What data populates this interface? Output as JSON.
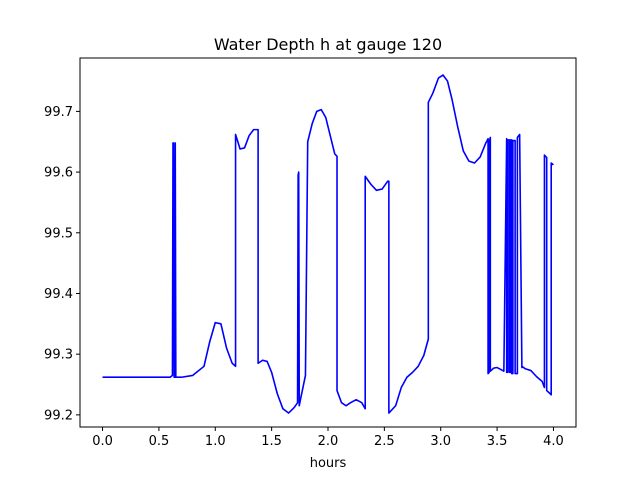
{
  "chart_data": {
    "type": "line",
    "title": "Water Depth h at gauge 120",
    "xlabel": "hours",
    "ylabel": "",
    "xlim": [
      -0.2,
      4.2
    ],
    "ylim": [
      99.18,
      99.788
    ],
    "xticks": [
      0.0,
      0.5,
      1.0,
      1.5,
      2.0,
      2.5,
      3.0,
      3.5,
      4.0
    ],
    "xtick_labels": [
      "0.0",
      "0.5",
      "1.0",
      "1.5",
      "2.0",
      "2.5",
      "3.0",
      "3.5",
      "4.0"
    ],
    "yticks": [
      99.2,
      99.3,
      99.4,
      99.5,
      99.6,
      99.7
    ],
    "ytick_labels": [
      "99.2",
      "99.3",
      "99.4",
      "99.5",
      "99.6",
      "99.7"
    ],
    "grid": false,
    "line_color": "#0000ff",
    "series": [
      {
        "x": [
          0.0,
          0.3,
          0.6,
          0.62,
          0.625,
          0.63,
          0.635,
          0.64,
          0.645,
          0.65,
          0.7,
          0.8,
          0.9,
          0.95,
          1.0,
          1.05,
          1.1,
          1.15,
          1.18,
          1.18,
          1.22,
          1.26,
          1.3,
          1.34,
          1.38,
          1.38,
          1.42,
          1.46,
          1.5,
          1.55,
          1.6,
          1.65,
          1.7,
          1.73,
          1.735,
          1.74,
          1.745,
          1.75,
          1.8,
          1.82,
          1.86,
          1.9,
          1.94,
          1.98,
          2.02,
          2.06,
          2.08,
          2.08,
          2.12,
          2.16,
          2.2,
          2.25,
          2.3,
          2.33,
          2.33,
          2.38,
          2.43,
          2.48,
          2.53,
          2.54,
          2.54,
          2.6,
          2.65,
          2.7,
          2.75,
          2.8,
          2.85,
          2.89,
          2.89,
          2.93,
          2.98,
          3.02,
          3.06,
          3.1,
          3.15,
          3.2,
          3.25,
          3.3,
          3.35,
          3.4,
          3.42,
          3.42,
          3.43,
          3.43,
          3.44,
          3.44,
          3.47,
          3.5,
          3.53,
          3.56,
          3.585,
          3.585,
          3.595,
          3.595,
          3.61,
          3.61,
          3.62,
          3.62,
          3.63,
          3.63,
          3.64,
          3.64,
          3.66,
          3.66,
          3.68,
          3.68,
          3.7,
          3.7,
          3.72,
          3.72,
          3.75,
          3.8,
          3.85,
          3.9,
          3.92,
          3.92,
          3.94,
          3.94,
          3.97,
          3.98,
          3.98,
          4.0
        ],
        "y": [
          99.262,
          99.262,
          99.262,
          99.265,
          99.648,
          99.648,
          99.262,
          99.262,
          99.648,
          99.262,
          99.262,
          99.265,
          99.28,
          99.32,
          99.352,
          99.35,
          99.31,
          99.285,
          99.28,
          99.662,
          99.638,
          99.64,
          99.66,
          99.67,
          99.67,
          99.285,
          99.29,
          99.288,
          99.27,
          99.235,
          99.21,
          99.203,
          99.212,
          99.22,
          99.595,
          99.6,
          99.215,
          99.22,
          99.265,
          99.65,
          99.68,
          99.7,
          99.703,
          99.69,
          99.66,
          99.63,
          99.626,
          99.24,
          99.22,
          99.215,
          99.22,
          99.225,
          99.22,
          99.21,
          99.593,
          99.58,
          99.57,
          99.572,
          99.585,
          99.585,
          99.203,
          99.215,
          99.245,
          99.262,
          99.27,
          99.28,
          99.298,
          99.325,
          99.715,
          99.73,
          99.755,
          99.76,
          99.75,
          99.72,
          99.675,
          99.635,
          99.618,
          99.615,
          99.625,
          99.648,
          99.655,
          99.268,
          99.27,
          99.65,
          99.657,
          99.272,
          99.277,
          99.278,
          99.275,
          99.272,
          99.655,
          99.27,
          99.27,
          99.653,
          99.653,
          99.27,
          99.27,
          99.653,
          99.653,
          99.268,
          99.268,
          99.652,
          99.652,
          99.268,
          99.268,
          99.657,
          99.662,
          99.662,
          99.278,
          99.28,
          99.276,
          99.273,
          99.263,
          99.255,
          99.245,
          99.628,
          99.624,
          99.24,
          99.235,
          99.233,
          99.615,
          99.612
        ]
      }
    ]
  }
}
